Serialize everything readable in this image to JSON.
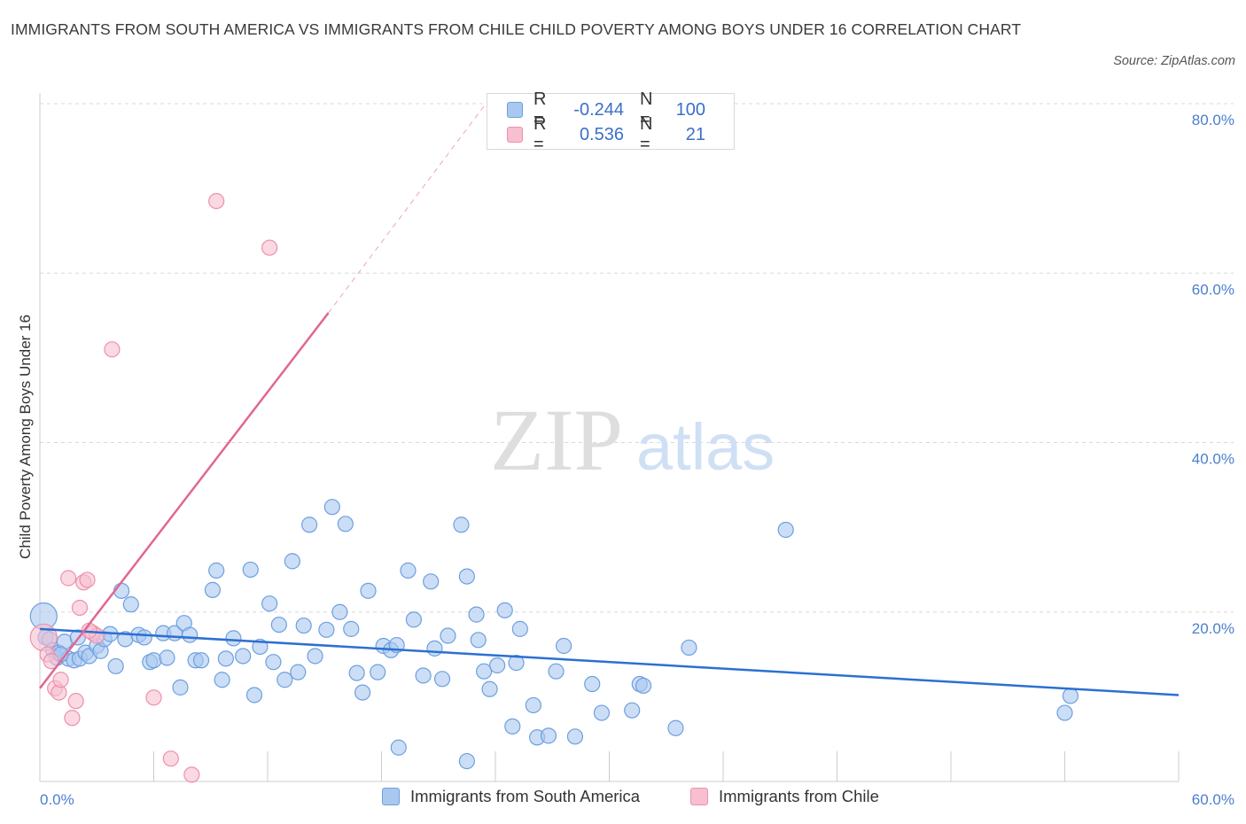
{
  "title": "IMMIGRANTS FROM SOUTH AMERICA VS IMMIGRANTS FROM CHILE CHILD POVERTY AMONG BOYS UNDER 16 CORRELATION CHART",
  "source": "Source: ZipAtlas.com",
  "watermark": {
    "zip": "ZIP",
    "atlas": "atlas"
  },
  "colors": {
    "blue_fill": "#a8c8f0",
    "blue_stroke": "#6e9fe0",
    "blue_line": "#2d6fd2",
    "pink_fill": "#f7bfd0",
    "pink_stroke": "#ee90ad",
    "pink_line": "#e06890",
    "tick_text": "#4a7fd0",
    "grid": "#d8d8d8"
  },
  "legend": {
    "rows": [
      {
        "r_label": "R =",
        "r_value": "-0.244",
        "n_label": "N =",
        "n_value": "100"
      },
      {
        "r_label": "R =",
        "r_value": "0.536",
        "n_label": "N =",
        "n_value": "21"
      }
    ]
  },
  "chart_data": {
    "type": "scatter",
    "xlabel": "",
    "ylabel": "Child Poverty Among Boys Under 16",
    "xlim": [
      0,
      60
    ],
    "ylim": [
      0,
      80
    ],
    "x_tick_labels": [
      "0.0%",
      "60.0%"
    ],
    "y_tick_labels": [
      "20.0%",
      "40.0%",
      "60.0%",
      "80.0%"
    ],
    "y_ticks": [
      20,
      40,
      60,
      80
    ],
    "x_minor_ticks": [
      6,
      12,
      18,
      24,
      30,
      36,
      42,
      48,
      54
    ],
    "grid": "horizontal dashed",
    "legend_position": "bottom",
    "series": [
      {
        "name": "Immigrants from South America",
        "color": "blue",
        "points": [
          [
            0.2,
            19.5
          ],
          [
            0.3,
            17
          ],
          [
            0.5,
            16.8
          ],
          [
            0.7,
            15.5
          ],
          [
            0.9,
            14.6
          ],
          [
            1.0,
            15.2
          ],
          [
            1.3,
            16.5
          ],
          [
            1.5,
            14.5
          ],
          [
            1.8,
            14.3
          ],
          [
            2.0,
            17.0
          ],
          [
            2.1,
            14.5
          ],
          [
            2.4,
            15.2
          ],
          [
            2.6,
            14.8
          ],
          [
            3.0,
            16.0
          ],
          [
            3.2,
            15.4
          ],
          [
            3.4,
            16.8
          ],
          [
            3.7,
            17.4
          ],
          [
            4.0,
            13.6
          ],
          [
            4.3,
            22.5
          ],
          [
            4.5,
            16.8
          ],
          [
            4.8,
            20.9
          ],
          [
            5.2,
            17.3
          ],
          [
            5.5,
            17.0
          ],
          [
            5.8,
            14.1
          ],
          [
            6.0,
            14.3
          ],
          [
            6.5,
            17.5
          ],
          [
            6.7,
            14.6
          ],
          [
            7.1,
            17.5
          ],
          [
            7.4,
            11.1
          ],
          [
            7.6,
            18.7
          ],
          [
            7.9,
            17.3
          ],
          [
            8.2,
            14.3
          ],
          [
            8.5,
            14.3
          ],
          [
            9.1,
            22.6
          ],
          [
            9.3,
            24.9
          ],
          [
            9.6,
            12.0
          ],
          [
            9.8,
            14.5
          ],
          [
            10.2,
            16.9
          ],
          [
            10.7,
            14.8
          ],
          [
            11.1,
            25.0
          ],
          [
            11.3,
            10.2
          ],
          [
            11.6,
            15.9
          ],
          [
            12.1,
            21.0
          ],
          [
            12.3,
            14.1
          ],
          [
            12.6,
            18.5
          ],
          [
            12.9,
            12.0
          ],
          [
            13.3,
            26.0
          ],
          [
            13.6,
            12.9
          ],
          [
            13.9,
            18.4
          ],
          [
            14.2,
            30.3
          ],
          [
            14.5,
            14.8
          ],
          [
            15.1,
            17.9
          ],
          [
            15.4,
            32.4
          ],
          [
            15.8,
            20.0
          ],
          [
            16.1,
            30.4
          ],
          [
            16.4,
            18.0
          ],
          [
            16.7,
            12.8
          ],
          [
            17.0,
            10.5
          ],
          [
            17.3,
            22.5
          ],
          [
            17.8,
            12.9
          ],
          [
            18.1,
            16.0
          ],
          [
            18.5,
            15.5
          ],
          [
            18.8,
            16.1
          ],
          [
            18.9,
            4.0
          ],
          [
            19.4,
            24.9
          ],
          [
            19.7,
            19.1
          ],
          [
            20.2,
            12.5
          ],
          [
            20.6,
            23.6
          ],
          [
            20.8,
            15.7
          ],
          [
            21.2,
            12.1
          ],
          [
            21.5,
            17.2
          ],
          [
            22.2,
            30.3
          ],
          [
            22.5,
            24.2
          ],
          [
            22.5,
            2.4
          ],
          [
            23.0,
            19.7
          ],
          [
            23.1,
            16.7
          ],
          [
            23.4,
            13.0
          ],
          [
            23.7,
            10.9
          ],
          [
            24.1,
            13.7
          ],
          [
            24.5,
            20.2
          ],
          [
            24.9,
            6.5
          ],
          [
            25.1,
            14.0
          ],
          [
            25.3,
            18.0
          ],
          [
            26.0,
            9.0
          ],
          [
            26.2,
            5.2
          ],
          [
            26.8,
            5.4
          ],
          [
            27.2,
            13.0
          ],
          [
            27.6,
            16.0
          ],
          [
            28.2,
            5.3
          ],
          [
            29.1,
            11.5
          ],
          [
            29.6,
            8.1
          ],
          [
            31.2,
            8.4
          ],
          [
            31.6,
            11.5
          ],
          [
            31.8,
            11.3
          ],
          [
            33.5,
            6.3
          ],
          [
            34.2,
            15.8
          ],
          [
            39.3,
            29.7
          ],
          [
            54.0,
            8.1
          ],
          [
            54.3,
            10.1
          ],
          [
            1.1,
            15.0
          ]
        ]
      },
      {
        "name": "Immigrants from Chile",
        "color": "pink",
        "points": [
          [
            0.2,
            17.0
          ],
          [
            0.4,
            15.0
          ],
          [
            0.6,
            14.2
          ],
          [
            0.8,
            11.0
          ],
          [
            1.0,
            10.5
          ],
          [
            1.1,
            12.0
          ],
          [
            1.5,
            24.0
          ],
          [
            1.7,
            7.5
          ],
          [
            1.9,
            9.5
          ],
          [
            2.1,
            20.5
          ],
          [
            2.3,
            23.5
          ],
          [
            2.5,
            23.8
          ],
          [
            2.8,
            17.5
          ],
          [
            3.0,
            17.2
          ],
          [
            3.8,
            51.0
          ],
          [
            6.0,
            9.9
          ],
          [
            6.9,
            2.7
          ],
          [
            8.0,
            0.8
          ],
          [
            9.3,
            68.5
          ],
          [
            12.1,
            63.0
          ],
          [
            2.6,
            17.8
          ]
        ]
      }
    ],
    "trend_lines": [
      {
        "series": "Immigrants from South America",
        "x": [
          0,
          60
        ],
        "y": [
          18.0,
          10.2
        ],
        "style": "solid"
      },
      {
        "series": "Immigrants from Chile",
        "x": [
          0,
          15.2
        ],
        "y": [
          11.0,
          55.3
        ],
        "style": "solid"
      },
      {
        "series": "Immigrants from Chile",
        "x": [
          15.2,
          23.5
        ],
        "y": [
          55.3,
          80.0
        ],
        "style": "dashed"
      }
    ]
  },
  "bottom_legend": {
    "items": [
      {
        "label": "Immigrants from South America"
      },
      {
        "label": "Immigrants from Chile"
      }
    ]
  }
}
